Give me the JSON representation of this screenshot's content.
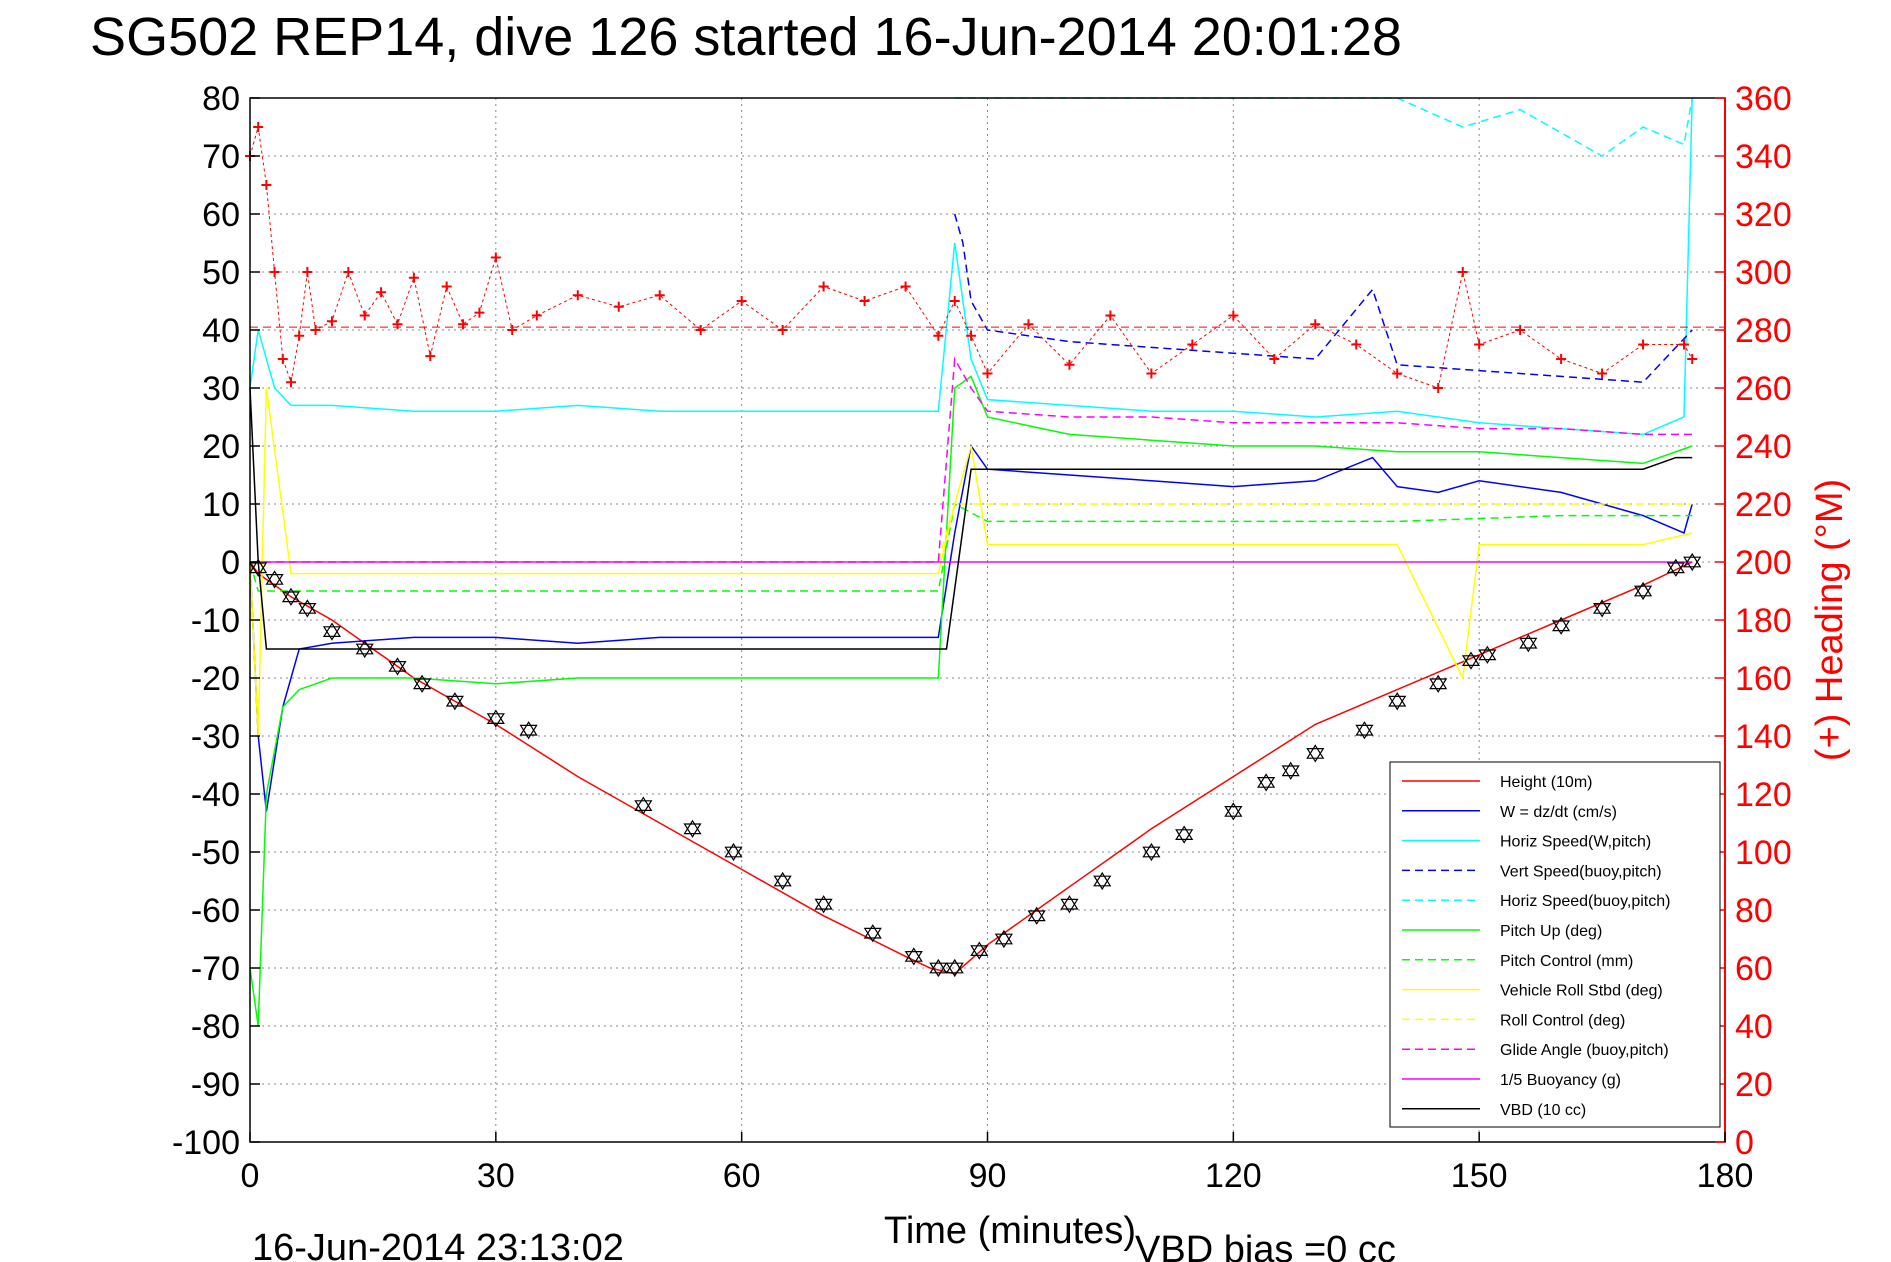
{
  "chart_data": {
    "type": "line",
    "title": "SG502 REP14, dive 126 started 16-Jun-2014 20:01:28",
    "xlabel": "Time (minutes)",
    "ylabel_right": "(+) Heading (°M)",
    "footer_left": "16-Jun-2014 23:13:02",
    "footer_right": "VBD bias =0 cc",
    "xlim": [
      0,
      180
    ],
    "ylim": [
      -100,
      80
    ],
    "y2lim": [
      0,
      360
    ],
    "xticks": [
      0,
      30,
      60,
      90,
      120,
      150,
      180
    ],
    "yticks": [
      80,
      70,
      60,
      50,
      40,
      30,
      20,
      10,
      0,
      -10,
      -20,
      -30,
      -40,
      -50,
      -60,
      -70,
      -80,
      -90,
      -100
    ],
    "y2ticks": [
      360,
      340,
      320,
      300,
      280,
      260,
      240,
      220,
      200,
      180,
      160,
      140,
      120,
      100,
      80,
      60,
      40,
      20,
      0
    ],
    "grid": true,
    "legend_position": "bottom-right",
    "colors": {
      "height": "#ff0000",
      "w": "#0000ff",
      "horiz_w": "#00ffff",
      "vert_buoy": "#0000ff",
      "horiz_buoy": "#00ffff",
      "pitch": "#00ff00",
      "pitch_ctrl": "#00ff00",
      "roll": "#ffff00",
      "roll_ctrl": "#ffff00",
      "glide": "#ff00ff",
      "buoyancy": "#ff00ff",
      "vbd": "#000000",
      "heading": "#ff0000"
    },
    "legend": [
      {
        "label": "Height (10m)",
        "color": "#ff0000",
        "dash": false
      },
      {
        "label": "W = dz/dt (cm/s)",
        "color": "#0000ff",
        "dash": false
      },
      {
        "label": "Horiz Speed(W,pitch)",
        "color": "#00ffff",
        "dash": false
      },
      {
        "label": "Vert Speed(buoy,pitch)",
        "color": "#0000ff",
        "dash": true
      },
      {
        "label": "Horiz Speed(buoy,pitch)",
        "color": "#00ffff",
        "dash": true
      },
      {
        "label": "Pitch Up (deg)",
        "color": "#00ff00",
        "dash": false
      },
      {
        "label": "Pitch Control (mm)",
        "color": "#00ff00",
        "dash": true
      },
      {
        "label": "Vehicle Roll Stbd (deg)",
        "color": "#ffff00",
        "dash": false
      },
      {
        "label": "Roll Control (deg)",
        "color": "#ffff00",
        "dash": true
      },
      {
        "label": "Glide Angle (buoy,pitch)",
        "color": "#ff00ff",
        "dash": true
      },
      {
        "label": "1/5 Buoyancy (g)",
        "color": "#ff00ff",
        "dash": false
      },
      {
        "label": "VBD (10 cc)",
        "color": "#000000",
        "dash": false
      }
    ],
    "series": [
      {
        "name": "Height (10m)",
        "axis": "left",
        "x": [
          0,
          1,
          5,
          10,
          20,
          30,
          40,
          50,
          60,
          70,
          80,
          83,
          86,
          90,
          100,
          110,
          120,
          130,
          140,
          150,
          160,
          170,
          176
        ],
        "y": [
          0,
          -2,
          -6,
          -10,
          -20,
          -28,
          -37,
          -45,
          -53,
          -61,
          -68,
          -70,
          -71,
          -66,
          -56,
          -46,
          -37,
          -28,
          -22,
          -16,
          -10,
          -4,
          0
        ]
      },
      {
        "name": "W = dz/dt (cm/s)",
        "axis": "left",
        "x": [
          0,
          1,
          2,
          4,
          6,
          10,
          20,
          30,
          40,
          50,
          60,
          70,
          80,
          84,
          86,
          88,
          90,
          100,
          110,
          120,
          130,
          137,
          140,
          145,
          150,
          160,
          170,
          175,
          176
        ],
        "y": [
          0,
          -30,
          -43,
          -25,
          -15,
          -14,
          -13,
          -13,
          -14,
          -13,
          -13,
          -13,
          -13,
          -13,
          5,
          20,
          16,
          15,
          14,
          13,
          14,
          18,
          13,
          12,
          14,
          12,
          8,
          5,
          10
        ]
      },
      {
        "name": "Horiz Speed(W,pitch)",
        "axis": "left",
        "x": [
          0,
          1,
          3,
          5,
          10,
          20,
          30,
          40,
          50,
          60,
          70,
          80,
          84,
          86,
          88,
          90,
          100,
          110,
          120,
          130,
          140,
          150,
          160,
          170,
          175,
          176
        ],
        "y": [
          30,
          40,
          30,
          27,
          27,
          26,
          26,
          27,
          26,
          26,
          26,
          26,
          26,
          55,
          35,
          28,
          27,
          26,
          26,
          25,
          26,
          24,
          23,
          22,
          25,
          80
        ]
      },
      {
        "name": "Vert Speed(buoy,pitch)",
        "axis": "left",
        "x": [
          86,
          87,
          88,
          90,
          100,
          110,
          120,
          130,
          137,
          140,
          150,
          160,
          170,
          176
        ],
        "y": [
          60,
          55,
          45,
          40,
          38,
          37,
          36,
          35,
          47,
          34,
          33,
          32,
          31,
          40
        ]
      },
      {
        "name": "Horiz Speed(buoy,pitch)",
        "axis": "left",
        "x": [
          86,
          87,
          90,
          100,
          120,
          140,
          148,
          155,
          160,
          165,
          170,
          175,
          176
        ],
        "y": [
          80,
          80,
          80,
          80,
          80,
          80,
          75,
          78,
          74,
          70,
          75,
          72,
          80
        ]
      },
      {
        "name": "Pitch Up (deg)",
        "axis": "left",
        "x": [
          0,
          1,
          2,
          4,
          6,
          8,
          10,
          20,
          30,
          40,
          50,
          60,
          70,
          80,
          84,
          86,
          88,
          90,
          100,
          110,
          120,
          130,
          140,
          150,
          160,
          170,
          176
        ],
        "y": [
          -70,
          -80,
          -40,
          -25,
          -22,
          -21,
          -20,
          -20,
          -21,
          -20,
          -20,
          -20,
          -20,
          -20,
          -20,
          30,
          32,
          25,
          22,
          21,
          20,
          20,
          19,
          19,
          18,
          17,
          20
        ]
      },
      {
        "name": "Pitch Control (mm)",
        "axis": "left",
        "x": [
          0,
          1,
          3,
          10,
          20,
          30,
          40,
          50,
          60,
          70,
          80,
          84,
          86,
          90,
          100,
          120,
          140,
          160,
          176
        ],
        "y": [
          0,
          -5,
          -5,
          -5,
          -5,
          -5,
          -5,
          -5,
          -5,
          -5,
          -5,
          -5,
          10,
          7,
          7,
          7,
          7,
          8,
          8
        ]
      },
      {
        "name": "Vehicle Roll Stbd (deg)",
        "axis": "left",
        "x": [
          0,
          1,
          2,
          5,
          8,
          12,
          20,
          30,
          40,
          50,
          60,
          70,
          80,
          84,
          86,
          88,
          90,
          100,
          110,
          120,
          130,
          140,
          148,
          150,
          160,
          170,
          176
        ],
        "y": [
          0,
          -30,
          30,
          -2,
          -2,
          -2,
          -2,
          -2,
          -2,
          -2,
          -2,
          -2,
          -2,
          -2,
          10,
          20,
          3,
          3,
          3,
          3,
          3,
          3,
          -20,
          3,
          3,
          3,
          5
        ]
      },
      {
        "name": "Roll Control (deg)",
        "axis": "left",
        "x": [
          0,
          2,
          6,
          10,
          14,
          20,
          30,
          40,
          50,
          60,
          70,
          80,
          84,
          86,
          90,
          100,
          110,
          120,
          130,
          140,
          150,
          160,
          170,
          176
        ],
        "y": [
          0,
          0,
          0,
          0,
          0,
          0,
          0,
          0,
          0,
          0,
          0,
          0,
          0,
          10,
          10,
          10,
          10,
          10,
          10,
          10,
          10,
          10,
          10,
          10
        ]
      },
      {
        "name": "Glide Angle (buoy,pitch)",
        "axis": "left",
        "x": [
          0,
          10,
          20,
          30,
          40,
          50,
          60,
          70,
          80,
          84,
          86,
          88,
          90,
          100,
          110,
          120,
          130,
          140,
          150,
          160,
          170,
          176
        ],
        "y": [
          0,
          0,
          0,
          0,
          0,
          0,
          0,
          0,
          0,
          0,
          35,
          30,
          26,
          25,
          25,
          24,
          24,
          24,
          23,
          23,
          22,
          22
        ]
      },
      {
        "name": "1/5 Buoyancy (g)",
        "axis": "left",
        "x": [
          0,
          30,
          60,
          84,
          86,
          90,
          120,
          150,
          176
        ],
        "y": [
          0,
          0,
          0,
          0,
          0,
          0,
          0,
          0,
          0
        ]
      },
      {
        "name": "VBD (10 cc)",
        "axis": "left",
        "x": [
          0,
          1,
          2,
          30,
          60,
          84,
          85,
          88,
          90,
          120,
          150,
          170,
          174,
          176
        ],
        "y": [
          30,
          0,
          -15,
          -15,
          -15,
          -15,
          -15,
          16,
          16,
          16,
          16,
          16,
          18,
          18
        ]
      },
      {
        "name": "(+) Heading (°M)",
        "axis": "right",
        "x": [
          0,
          1,
          2,
          3,
          4,
          5,
          6,
          7,
          8,
          10,
          12,
          14,
          16,
          18,
          20,
          22,
          24,
          26,
          28,
          30,
          32,
          35,
          40,
          45,
          50,
          55,
          60,
          65,
          70,
          75,
          80,
          84,
          86,
          88,
          90,
          95,
          100,
          105,
          110,
          115,
          120,
          125,
          130,
          135,
          140,
          145,
          148,
          150,
          155,
          160,
          165,
          170,
          175,
          176
        ],
        "y": [
          340,
          350,
          330,
          300,
          270,
          262,
          278,
          300,
          280,
          283,
          300,
          285,
          293,
          282,
          298,
          271,
          295,
          282,
          286,
          305,
          280,
          285,
          292,
          288,
          292,
          280,
          290,
          280,
          295,
          290,
          295,
          278,
          290,
          278,
          265,
          282,
          268,
          285,
          265,
          275,
          285,
          270,
          282,
          275,
          265,
          260,
          300,
          275,
          280,
          270,
          265,
          275,
          275,
          270
        ]
      }
    ],
    "markers_down": {
      "x": [
        1,
        3,
        5,
        7,
        10,
        14,
        18,
        21,
        25,
        30,
        34,
        48,
        54,
        59,
        65,
        70,
        76,
        81,
        84
      ],
      "y": [
        -1,
        -3,
        -6,
        -8,
        -12,
        -15,
        -18,
        -21,
        -24,
        -27,
        -29,
        -42,
        -46,
        -50,
        -55,
        -59,
        -64,
        -68,
        -70
      ]
    },
    "markers_up": {
      "x": [
        86,
        89,
        92,
        96,
        100,
        104,
        110,
        114,
        120,
        124,
        127,
        130,
        136,
        140,
        145,
        149,
        151,
        156,
        160,
        165,
        170,
        174,
        176
      ],
      "y": [
        -70,
        -67,
        -65,
        -61,
        -59,
        -55,
        -50,
        -47,
        -43,
        -38,
        -36,
        -33,
        -29,
        -24,
        -21,
        -17,
        -16,
        -14,
        -11,
        -8,
        -5,
        -1,
        0
      ]
    }
  }
}
